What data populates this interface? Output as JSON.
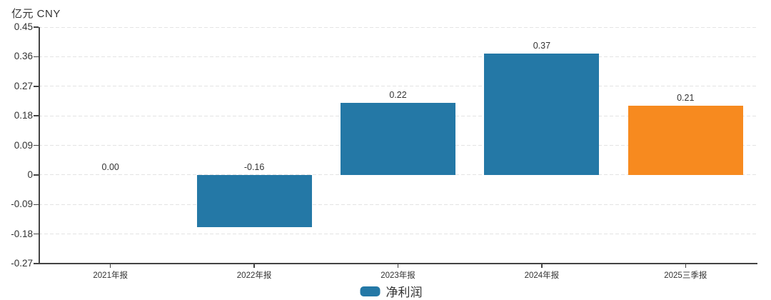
{
  "header": {
    "unit_label": "亿元 CNY"
  },
  "legend": {
    "items": [
      {
        "label": "净利润",
        "color": "#2478a6"
      }
    ]
  },
  "colors": {
    "bar_primary": "#2478a6",
    "bar_highlight": "#f78a1f",
    "axis_line": "#444444",
    "grid_line": "#e4e4e4",
    "text": "#333333"
  },
  "chart_data": {
    "type": "bar",
    "title": "",
    "unit": "亿元 CNY",
    "categories": [
      "2021年报",
      "2022年报",
      "2023年报",
      "2024年报",
      "2025三季报"
    ],
    "series": [
      {
        "name": "净利润",
        "values": [
          0.0,
          -0.16,
          0.22,
          0.37,
          0.21
        ],
        "value_labels": [
          "0.00",
          "-0.16",
          "0.22",
          "0.37",
          "0.21"
        ],
        "bar_colors": [
          "#2478a6",
          "#2478a6",
          "#2478a6",
          "#2478a6",
          "#f78a1f"
        ]
      }
    ],
    "ylim": [
      -0.27,
      0.45
    ],
    "yticks": [
      0.45,
      0.36,
      0.27,
      0.18,
      0.09,
      0,
      -0.09,
      -0.18,
      -0.27
    ],
    "ytick_labels": [
      "0.45",
      "0.36",
      "0.27",
      "0.18",
      "0.09",
      "0",
      "-0.09",
      "-0.18",
      "-0.27"
    ],
    "grid": "dashed-horizontal",
    "legend_position": "bottom-center"
  }
}
